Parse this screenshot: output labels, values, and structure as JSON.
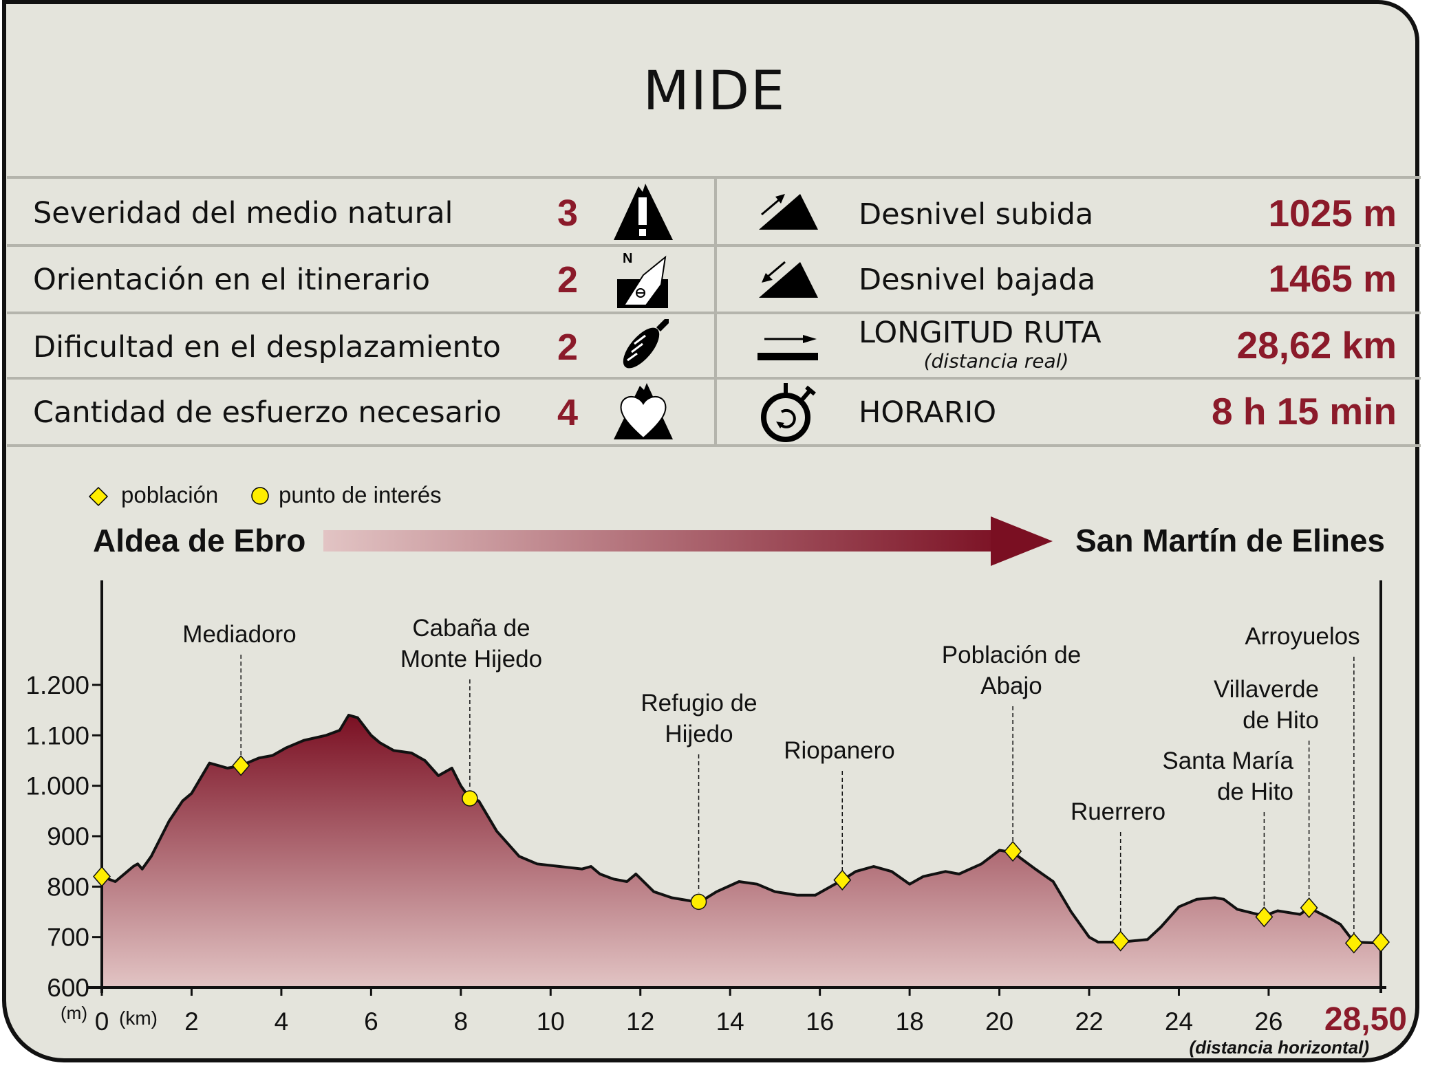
{
  "title": "MIDE",
  "mide": [
    {
      "label": "Severidad del medio natural",
      "value": "3",
      "icon": "warning-mountain-icon"
    },
    {
      "label": "Orientación en el itinerario",
      "value": "2",
      "icon": "compass-north-icon"
    },
    {
      "label": "Dificultad en el desplazamiento",
      "value": "2",
      "icon": "footprint-icon"
    },
    {
      "label": "Cantidad de esfuerzo necesario",
      "value": "4",
      "icon": "heart-mountain-icon"
    }
  ],
  "stats": [
    {
      "label": "Desnivel subida",
      "value": "1025 m",
      "icon": "ascent-icon"
    },
    {
      "label": "Desnivel bajada",
      "value": "1465 m",
      "icon": "descent-icon"
    },
    {
      "label": "LONGITUD RUTA",
      "sublabel": "(distancia real)",
      "value": "28,62 km",
      "icon": "distance-icon"
    },
    {
      "label": "HORARIO",
      "value": "8 h 15 min",
      "icon": "stopwatch-icon"
    }
  ],
  "legend": {
    "town": "población",
    "poi": "punto de interés"
  },
  "route": {
    "start": "Aldea de Ebro",
    "end": "San Martín de Elines"
  },
  "colors": {
    "accent": "#8b1a2a",
    "background": "#e4e4dc",
    "marker": "#ffee00",
    "fill_top": "#7a0f22",
    "fill_bottom": "#e2c4c4"
  },
  "chart_data": {
    "type": "area",
    "xlabel": "(km)",
    "ylabel": "(m)",
    "xlim": [
      0,
      28.5
    ],
    "ylim": [
      600,
      1200
    ],
    "x_ticks": [
      "0",
      "2",
      "4",
      "6",
      "8",
      "10",
      "12",
      "14",
      "16",
      "18",
      "20",
      "22",
      "24",
      "26"
    ],
    "x_tick_values": [
      0,
      2,
      4,
      6,
      8,
      10,
      12,
      14,
      16,
      18,
      20,
      22,
      24,
      26
    ],
    "y_ticks": [
      "600",
      "700",
      "800",
      "900",
      "1.000",
      "1.100",
      "1.200"
    ],
    "y_tick_values": [
      600,
      700,
      800,
      900,
      1000,
      1100,
      1200
    ],
    "end_label": "28,50",
    "end_note": "(distancia horizontal)",
    "profile": [
      [
        0,
        820
      ],
      [
        0.3,
        810
      ],
      [
        0.7,
        840
      ],
      [
        0.8,
        845
      ],
      [
        0.9,
        835
      ],
      [
        1.1,
        860
      ],
      [
        1.5,
        930
      ],
      [
        1.8,
        970
      ],
      [
        2.0,
        985
      ],
      [
        2.3,
        1030
      ],
      [
        2.4,
        1045
      ],
      [
        2.6,
        1040
      ],
      [
        2.8,
        1035
      ],
      [
        3.1,
        1040
      ],
      [
        3.5,
        1055
      ],
      [
        3.8,
        1060
      ],
      [
        4.1,
        1075
      ],
      [
        4.5,
        1090
      ],
      [
        5.0,
        1100
      ],
      [
        5.3,
        1110
      ],
      [
        5.5,
        1140
      ],
      [
        5.7,
        1135
      ],
      [
        6.0,
        1100
      ],
      [
        6.2,
        1085
      ],
      [
        6.5,
        1070
      ],
      [
        6.9,
        1065
      ],
      [
        7.2,
        1050
      ],
      [
        7.5,
        1020
      ],
      [
        7.8,
        1035
      ],
      [
        8.0,
        1000
      ],
      [
        8.2,
        975
      ],
      [
        8.4,
        970
      ],
      [
        8.8,
        910
      ],
      [
        9.1,
        880
      ],
      [
        9.3,
        860
      ],
      [
        9.7,
        845
      ],
      [
        10.2,
        840
      ],
      [
        10.7,
        835
      ],
      [
        10.9,
        840
      ],
      [
        11.1,
        825
      ],
      [
        11.4,
        815
      ],
      [
        11.7,
        810
      ],
      [
        11.9,
        825
      ],
      [
        12.3,
        790
      ],
      [
        12.7,
        778
      ],
      [
        13.1,
        772
      ],
      [
        13.3,
        768
      ],
      [
        13.7,
        790
      ],
      [
        14.2,
        810
      ],
      [
        14.6,
        805
      ],
      [
        15.0,
        790
      ],
      [
        15.5,
        783
      ],
      [
        15.9,
        783
      ],
      [
        16.5,
        813
      ],
      [
        16.8,
        830
      ],
      [
        17.2,
        840
      ],
      [
        17.6,
        830
      ],
      [
        18.0,
        805
      ],
      [
        18.3,
        820
      ],
      [
        18.8,
        830
      ],
      [
        19.1,
        825
      ],
      [
        19.6,
        845
      ],
      [
        20.0,
        872
      ],
      [
        20.3,
        868
      ],
      [
        20.8,
        835
      ],
      [
        21.2,
        810
      ],
      [
        21.6,
        750
      ],
      [
        22.0,
        700
      ],
      [
        22.2,
        690
      ],
      [
        22.7,
        690
      ],
      [
        23.3,
        695
      ],
      [
        23.6,
        720
      ],
      [
        24.0,
        760
      ],
      [
        24.4,
        775
      ],
      [
        24.8,
        778
      ],
      [
        25.0,
        775
      ],
      [
        25.3,
        755
      ],
      [
        25.9,
        742
      ],
      [
        26.2,
        752
      ],
      [
        26.7,
        745
      ],
      [
        26.9,
        758
      ],
      [
        27.3,
        740
      ],
      [
        27.6,
        725
      ],
      [
        27.9,
        690
      ],
      [
        28.5,
        688
      ]
    ],
    "points": [
      {
        "name": "",
        "km": 0,
        "alt": 820,
        "kind": "town"
      },
      {
        "name": "Mediadoro",
        "km": 3.1,
        "alt": 1040,
        "kind": "town"
      },
      {
        "name": "Cabaña de\nMonte Hijedo",
        "km": 8.2,
        "alt": 975,
        "kind": "poi"
      },
      {
        "name": "Refugio de\nHijedo",
        "km": 13.3,
        "alt": 770,
        "kind": "poi"
      },
      {
        "name": "Riopanero",
        "km": 16.5,
        "alt": 813,
        "kind": "town"
      },
      {
        "name": "Población de\nAbajo",
        "km": 20.3,
        "alt": 870,
        "kind": "town"
      },
      {
        "name": "Ruerrero",
        "km": 22.7,
        "alt": 692,
        "kind": "town"
      },
      {
        "name": "Santa María\nde Hito",
        "km": 25.9,
        "alt": 740,
        "kind": "town"
      },
      {
        "name": "Villaverde\nde Hito",
        "km": 26.9,
        "alt": 758,
        "kind": "town"
      },
      {
        "name": "Arroyuelos",
        "km": 27.9,
        "alt": 688,
        "kind": "town"
      },
      {
        "name": "",
        "km": 28.5,
        "alt": 690,
        "kind": "town"
      }
    ]
  }
}
